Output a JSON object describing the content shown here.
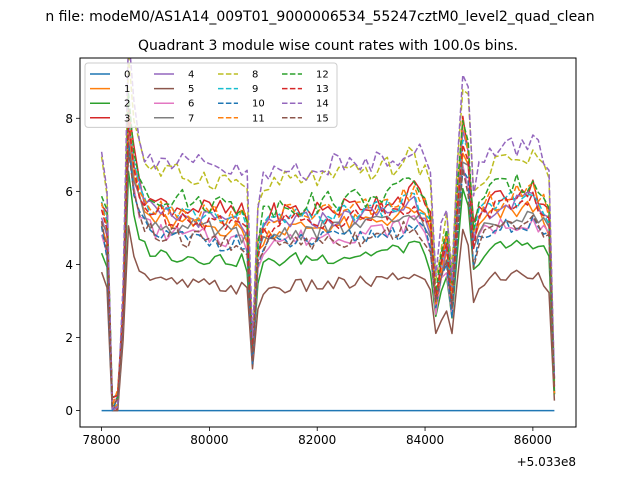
{
  "chart_data": {
    "type": "line",
    "suptitle": "n file: modeM0/AS1A14_009T01_9000006534_55247cztM0_level2_quad_clean",
    "title": "Quadrant 3 module wise count rates with 100.0s bins.",
    "xlabel": "",
    "ylabel": "",
    "x_offset_label": "+5.033e8",
    "xlim": [
      77600,
      86800
    ],
    "ylim": [
      -0.45,
      9.65
    ],
    "x_ticks": [
      78000,
      80000,
      82000,
      84000,
      86000
    ],
    "x_tick_labels": [
      "78000",
      "80000",
      "82000",
      "84000",
      "86000"
    ],
    "y_ticks": [
      0,
      2,
      4,
      6,
      8
    ],
    "y_tick_labels": [
      "0",
      "2",
      "4",
      "6",
      "8"
    ],
    "legend_position": "top-left",
    "legend_columns": 4,
    "x_start": 78000,
    "x_step": 100,
    "x_end": 86400,
    "profile": [
      [
        78000,
        1.0
      ],
      [
        78100,
        0.9
      ],
      [
        78200,
        0.02
      ],
      [
        78300,
        0.05
      ],
      [
        78400,
        0.5
      ],
      [
        78500,
        1.45
      ],
      [
        78600,
        1.2
      ],
      [
        78700,
        1.1
      ],
      [
        78800,
        1.02
      ],
      [
        79000,
        0.98
      ],
      [
        79500,
        0.96
      ],
      [
        80000,
        0.95
      ],
      [
        80600,
        0.93
      ],
      [
        80700,
        0.9
      ],
      [
        80800,
        0.28
      ],
      [
        80900,
        0.8
      ],
      [
        81000,
        0.9
      ],
      [
        81200,
        0.93
      ],
      [
        81500,
        0.94
      ],
      [
        82000,
        0.95
      ],
      [
        82500,
        0.96
      ],
      [
        83000,
        0.98
      ],
      [
        83500,
        1.0
      ],
      [
        83800,
        1.05
      ],
      [
        83900,
        1.0
      ],
      [
        84000,
        0.98
      ],
      [
        84100,
        0.9
      ],
      [
        84200,
        0.55
      ],
      [
        84300,
        0.7
      ],
      [
        84400,
        0.8
      ],
      [
        84500,
        0.55
      ],
      [
        84600,
        1.0
      ],
      [
        84700,
        1.35
      ],
      [
        84800,
        1.25
      ],
      [
        84900,
        0.85
      ],
      [
        85000,
        0.95
      ],
      [
        85200,
        1.0
      ],
      [
        85500,
        1.02
      ],
      [
        86000,
        1.05
      ],
      [
        86200,
        1.0
      ],
      [
        86300,
        0.95
      ],
      [
        86400,
        0.12
      ]
    ],
    "series": [
      {
        "name": "0",
        "color": "#1f77b4",
        "dash": "solid",
        "base": 0.0,
        "amp": 0.0
      },
      {
        "name": "1",
        "color": "#ff7f0e",
        "dash": "solid",
        "base": 5.3,
        "amp": 0.25
      },
      {
        "name": "2",
        "color": "#2ca02c",
        "dash": "solid",
        "base": 4.4,
        "amp": 0.2
      },
      {
        "name": "3",
        "color": "#d62728",
        "dash": "solid",
        "base": 5.8,
        "amp": 0.3
      },
      {
        "name": "4",
        "color": "#9467bd",
        "dash": "solid",
        "base": 5.5,
        "amp": 0.25
      },
      {
        "name": "5",
        "color": "#8c564b",
        "dash": "solid",
        "base": 3.6,
        "amp": 0.2
      },
      {
        "name": "6",
        "color": "#e377c2",
        "dash": "solid",
        "base": 5.0,
        "amp": 0.25
      },
      {
        "name": "7",
        "color": "#7f7f7f",
        "dash": "solid",
        "base": 5.2,
        "amp": 0.25
      },
      {
        "name": "8",
        "color": "#bcbd22",
        "dash": "dashed",
        "base": 6.7,
        "amp": 0.3
      },
      {
        "name": "9",
        "color": "#17becf",
        "dash": "dashed",
        "base": 5.6,
        "amp": 0.25
      },
      {
        "name": "10",
        "color": "#1f77b4",
        "dash": "dashed",
        "base": 4.9,
        "amp": 0.25
      },
      {
        "name": "11",
        "color": "#ff7f0e",
        "dash": "dashed",
        "base": 5.7,
        "amp": 0.3
      },
      {
        "name": "12",
        "color": "#2ca02c",
        "dash": "dashed",
        "base": 6.0,
        "amp": 0.3
      },
      {
        "name": "13",
        "color": "#d62728",
        "dash": "dashed",
        "base": 5.5,
        "amp": 0.3
      },
      {
        "name": "14",
        "color": "#9467bd",
        "dash": "dashed",
        "base": 7.0,
        "amp": 0.35
      },
      {
        "name": "15",
        "color": "#8c564b",
        "dash": "dashed",
        "base": 4.9,
        "amp": 0.3
      }
    ]
  }
}
